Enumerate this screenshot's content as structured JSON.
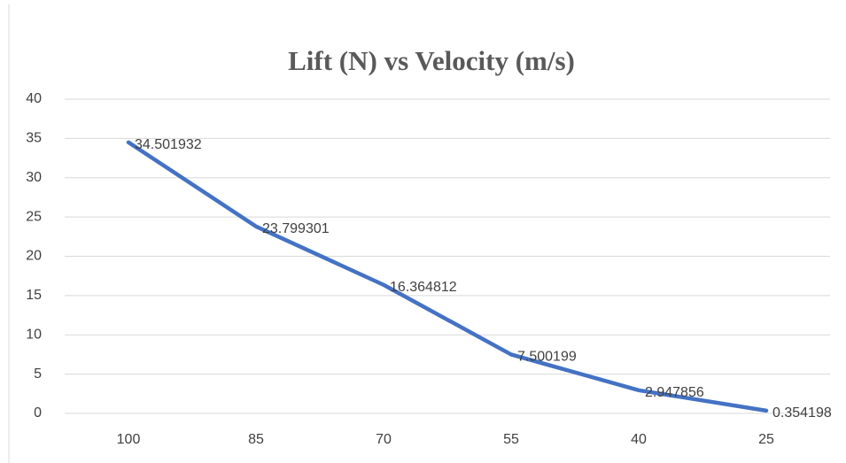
{
  "chart_data": {
    "type": "line",
    "title": "Lift (N) vs Velocity (m/s)",
    "categories": [
      "100",
      "85",
      "70",
      "55",
      "40",
      "25"
    ],
    "series": [
      {
        "name": "Lift",
        "color": "#4472c4",
        "values": [
          34.501932,
          23.799301,
          16.364812,
          7.500199,
          2.947856,
          0.354198
        ]
      }
    ],
    "ylim": [
      0,
      40
    ],
    "yticks": [
      0,
      5,
      10,
      15,
      20,
      25,
      30,
      35,
      40
    ],
    "grid": true
  }
}
